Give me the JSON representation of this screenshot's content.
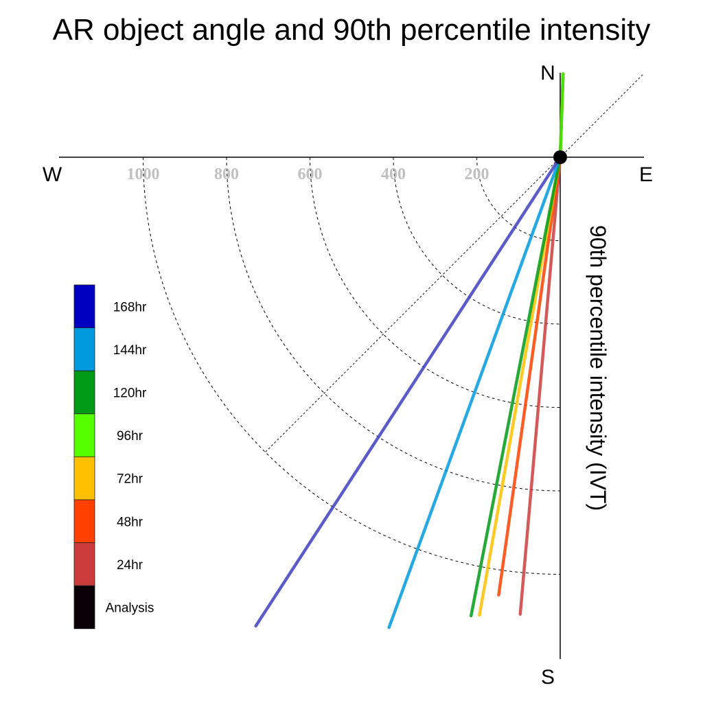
{
  "chart_data": {
    "type": "polar-vector",
    "title": "AR object angle and 90th percentile intensity",
    "ylabel": "90th percentile intensity (IVT)",
    "compass": {
      "north": "N",
      "south": "S",
      "east": "E",
      "west": "W"
    },
    "radial_ticks": [
      200,
      400,
      600,
      800,
      1000
    ],
    "radial_tick_labels": [
      "200",
      "400",
      "600",
      "800",
      "1000"
    ],
    "rmax": 1200,
    "series": [
      {
        "name": "Analysis",
        "color": "#0a0008",
        "angle_deg": 2,
        "intensity": 200
      },
      {
        "name": "96hr",
        "color": "#55ff00",
        "angle_deg": 2,
        "intensity": 200
      },
      {
        "name": "24hr",
        "color": "#cc3c3c",
        "angle_deg": 185,
        "intensity": 1100
      },
      {
        "name": "48hr",
        "color": "#ff4000",
        "angle_deg": 188,
        "intensity": 1060
      },
      {
        "name": "72hr",
        "color": "#ffc000",
        "angle_deg": 190,
        "intensity": 1115
      },
      {
        "name": "120hr",
        "color": "#009a16",
        "angle_deg": 191,
        "intensity": 1120
      },
      {
        "name": "144hr",
        "color": "#0099dd",
        "angle_deg": 200,
        "intensity": 1200
      },
      {
        "name": "168hr",
        "color": "#4040c0",
        "angle_deg": 213,
        "intensity": 1340
      }
    ],
    "legend": [
      {
        "label": "168hr",
        "color": "#0000c0"
      },
      {
        "label": "144hr",
        "color": "#0099dd"
      },
      {
        "label": "120hr",
        "color": "#009a16"
      },
      {
        "label": "96hr",
        "color": "#55ff00"
      },
      {
        "label": "72hr",
        "color": "#ffc000"
      },
      {
        "label": "48hr",
        "color": "#ff4000"
      },
      {
        "label": "24hr",
        "color": "#cc3c3c"
      },
      {
        "label": "Analysis",
        "color": "#0a0008"
      }
    ],
    "legend_placement": "left"
  }
}
